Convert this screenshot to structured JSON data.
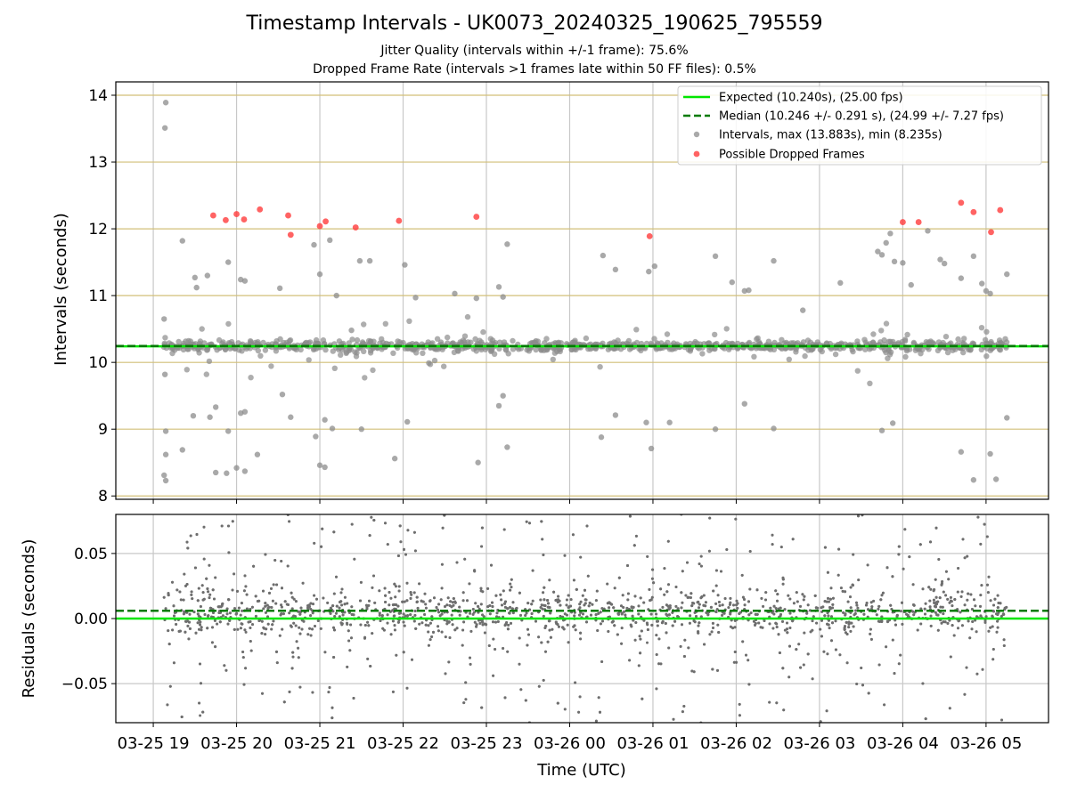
{
  "title": "Timestamp Intervals - UK0073_20240325_190625_795559",
  "subtitle_1": "Jitter Quality (intervals within +/-1 frame): 75.6%",
  "subtitle_2": "Dropped Frame Rate (intervals >1 frames late within 50 FF files): 0.5%",
  "colors": {
    "expected_line": "#00e600",
    "median_line": "#007a00",
    "interval_points": "#8c8c8c",
    "dropped_points": "#ff3c3c",
    "residual_points": "#6e6e6e",
    "top_grid": "#d2bf78",
    "grid": "#c8c8c8"
  },
  "chart_data": [
    {
      "type": "scatter",
      "ylabel": "Intervals (seconds)",
      "ylim": [
        7.95,
        14.2
      ],
      "xlim_hours": [
        18.55,
        29.75
      ],
      "yticks": [
        8,
        9,
        10,
        11,
        12,
        13,
        14
      ],
      "grid": true,
      "legend_position": "top-right",
      "expected_interval": 10.24,
      "median_interval": 10.246,
      "legend": [
        "Expected (10.240s), (25.00 fps)",
        "Median (10.246 +/- 0.291 s), (24.99 +/- 7.27 fps)",
        "Intervals, max (13.883s), min (8.235s)",
        "Possible Dropped Frames"
      ],
      "dropped_points": [
        [
          19.72,
          12.2
        ],
        [
          19.87,
          12.13
        ],
        [
          20.0,
          12.22
        ],
        [
          20.09,
          12.14
        ],
        [
          20.28,
          12.29
        ],
        [
          20.62,
          12.2
        ],
        [
          20.65,
          11.91
        ],
        [
          21.0,
          12.04
        ],
        [
          21.07,
          12.11
        ],
        [
          21.43,
          12.02
        ],
        [
          21.95,
          12.12
        ],
        [
          22.88,
          12.18
        ],
        [
          24.96,
          11.89
        ],
        [
          28.0,
          12.1
        ],
        [
          28.19,
          12.1
        ],
        [
          28.7,
          12.39
        ],
        [
          28.85,
          12.25
        ],
        [
          29.06,
          11.95
        ],
        [
          29.17,
          12.28
        ]
      ],
      "outlier_points": [
        [
          19.15,
          13.89
        ],
        [
          19.14,
          13.51
        ],
        [
          19.13,
          10.65
        ],
        [
          19.14,
          9.82
        ],
        [
          19.15,
          8.97
        ],
        [
          19.15,
          8.62
        ],
        [
          19.13,
          8.31
        ],
        [
          19.15,
          8.23
        ],
        [
          19.35,
          11.82
        ],
        [
          19.35,
          8.69
        ],
        [
          19.5,
          11.27
        ],
        [
          19.52,
          11.12
        ],
        [
          19.48,
          9.2
        ],
        [
          19.65,
          11.3
        ],
        [
          19.68,
          9.18
        ],
        [
          19.75,
          9.33
        ],
        [
          19.75,
          8.35
        ],
        [
          19.88,
          8.34
        ],
        [
          19.9,
          11.5
        ],
        [
          19.9,
          8.97
        ],
        [
          20.0,
          8.42
        ],
        [
          20.05,
          11.24
        ],
        [
          20.05,
          9.24
        ],
        [
          20.1,
          11.22
        ],
        [
          20.1,
          9.26
        ],
        [
          20.1,
          8.37
        ],
        [
          20.25,
          8.62
        ],
        [
          20.52,
          11.11
        ],
        [
          20.55,
          9.52
        ],
        [
          20.65,
          9.18
        ],
        [
          20.93,
          11.76
        ],
        [
          20.95,
          8.89
        ],
        [
          21.0,
          11.32
        ],
        [
          21.0,
          8.46
        ],
        [
          21.06,
          9.14
        ],
        [
          21.06,
          8.43
        ],
        [
          21.12,
          11.83
        ],
        [
          21.15,
          9.01
        ],
        [
          21.2,
          11.0
        ],
        [
          21.38,
          10.48
        ],
        [
          21.48,
          11.52
        ],
        [
          21.5,
          9.0
        ],
        [
          21.6,
          11.52
        ],
        [
          21.9,
          8.56
        ],
        [
          22.02,
          11.46
        ],
        [
          22.05,
          9.11
        ],
        [
          22.15,
          10.97
        ],
        [
          22.62,
          11.03
        ],
        [
          22.88,
          10.96
        ],
        [
          22.9,
          8.5
        ],
        [
          23.15,
          11.13
        ],
        [
          23.2,
          10.98
        ],
        [
          23.15,
          9.35
        ],
        [
          23.2,
          9.5
        ],
        [
          23.25,
          11.77
        ],
        [
          23.25,
          8.73
        ],
        [
          24.4,
          11.6
        ],
        [
          24.55,
          11.39
        ],
        [
          24.55,
          9.21
        ],
        [
          24.38,
          8.88
        ],
        [
          24.95,
          11.36
        ],
        [
          25.02,
          11.44
        ],
        [
          24.98,
          8.71
        ],
        [
          24.92,
          9.1
        ],
        [
          25.2,
          9.1
        ],
        [
          25.75,
          11.59
        ],
        [
          25.75,
          9.0
        ],
        [
          25.95,
          11.2
        ],
        [
          26.1,
          11.07
        ],
        [
          26.15,
          11.08
        ],
        [
          26.1,
          9.38
        ],
        [
          26.45,
          11.52
        ],
        [
          26.45,
          9.01
        ],
        [
          26.8,
          10.78
        ],
        [
          27.25,
          11.19
        ],
        [
          27.7,
          11.66
        ],
        [
          27.75,
          11.61
        ],
        [
          27.75,
          8.98
        ],
        [
          27.8,
          11.79
        ],
        [
          27.85,
          11.93
        ],
        [
          27.88,
          9.09
        ],
        [
          27.9,
          11.51
        ],
        [
          28.0,
          11.49
        ],
        [
          28.1,
          11.16
        ],
        [
          28.3,
          11.97
        ],
        [
          28.45,
          11.54
        ],
        [
          28.5,
          11.48
        ],
        [
          28.7,
          11.26
        ],
        [
          28.7,
          8.66
        ],
        [
          28.85,
          11.59
        ],
        [
          28.85,
          8.24
        ],
        [
          28.95,
          11.18
        ],
        [
          29.0,
          11.07
        ],
        [
          29.05,
          11.03
        ],
        [
          29.05,
          8.63
        ],
        [
          29.12,
          8.25
        ],
        [
          29.25,
          11.32
        ],
        [
          29.25,
          9.17
        ]
      ]
    },
    {
      "type": "scatter",
      "xlabel": "Time (UTC)",
      "ylabel": "Residuals (seconds)",
      "ylim": [
        -0.08,
        0.08
      ],
      "yticks": [
        0.05,
        0.0,
        -0.05
      ],
      "ytick_labels": [
        "0.05",
        "0.00",
        "−0.05"
      ],
      "grid": true,
      "expected_residual": 0.0,
      "median_residual": 0.006,
      "point_count_estimate": 3400,
      "xticks_hours": [
        19,
        20,
        21,
        22,
        23,
        24,
        25,
        26,
        27,
        28,
        29
      ],
      "xtick_labels": [
        "03-25 19",
        "03-25 20",
        "03-25 21",
        "03-25 22",
        "03-25 23",
        "03-26 00",
        "03-26 01",
        "03-26 02",
        "03-26 03",
        "03-26 04",
        "03-26 05"
      ]
    }
  ]
}
